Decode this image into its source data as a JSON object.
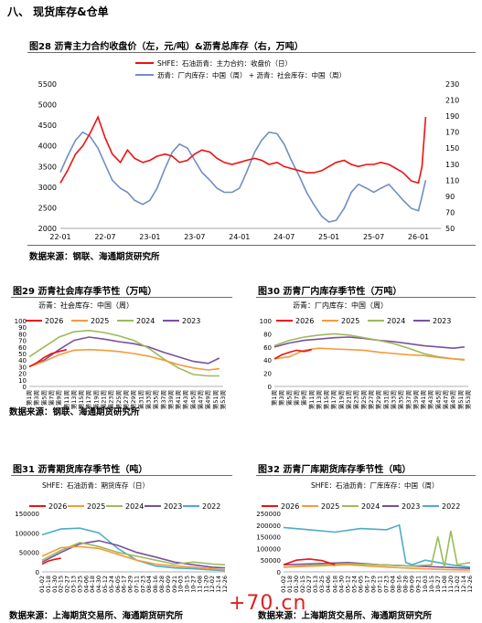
{
  "section_title": "八、  现货库存&仓单",
  "logo_text": "+70.cn",
  "figures": [
    {
      "id": "fig28",
      "title": "图28  沥青主力合约收盘价（左，元/吨）&沥青总库存（右，万吨）",
      "source": "数据来源：钢联、海通期货研究所",
      "legend": [
        "SHFE：石油沥青：主力合约：收盘价（日）",
        "沥青：厂内库存：中国（周）  + 沥青：社会库存：中国（周）"
      ]
    },
    {
      "id": "fig29",
      "title": "图29  沥青社会库存季节性（万吨）",
      "source": "数据来源：钢联、海通期货研究所",
      "subtitle": "沥青：社会库存：中国（周）"
    },
    {
      "id": "fig30",
      "title": "图30  沥青厂内库存季节性（万吨）",
      "subtitle": "沥青：厂内库存：中国（周）"
    },
    {
      "id": "fig31",
      "title": "图31  沥青期货库存季节性（吨）",
      "source": "数据来源：上海期货交易所、海通期货研究所",
      "subtitle": "SHFE：石油沥青：期货库存（日）"
    },
    {
      "id": "fig32",
      "title": "图32  沥青厂库期货库存季节性（吨）",
      "source": "数据来源：上海期货交易所、海通期货研究所",
      "subtitle": "SHFE：石油沥青：厂库库存：中国（周）"
    }
  ],
  "chart_data": [
    {
      "type": "line",
      "title": "沥青主力合约收盘价（左，元/吨）&沥青总库存（右，万吨）",
      "x_ticks": [
        "22-01",
        "22-07",
        "23-01",
        "23-07",
        "24-01",
        "24-07",
        "25-01",
        "25-07",
        "26-01"
      ],
      "ylim_left": [
        2000,
        5500
      ],
      "yticks_left": [
        2000,
        2500,
        3000,
        3500,
        4000,
        4500,
        5000,
        5500
      ],
      "ylim_right": [
        50,
        230
      ],
      "yticks_right": [
        50,
        70,
        90,
        110,
        130,
        150,
        170,
        190,
        210,
        230
      ],
      "colors": {
        "price": "#ee1111",
        "inventory": "#6f8fc4"
      },
      "series": [
        {
          "name": "SHFE：石油沥青：主力合约：收盘价（日）",
          "axis": "left",
          "x": [
            2022.0,
            2022.08,
            2022.17,
            2022.25,
            2022.33,
            2022.42,
            2022.5,
            2022.58,
            2022.67,
            2022.75,
            2022.83,
            2022.92,
            2023.0,
            2023.08,
            2023.17,
            2023.25,
            2023.33,
            2023.42,
            2023.5,
            2023.58,
            2023.67,
            2023.75,
            2023.83,
            2023.92,
            2024.0,
            2024.08,
            2024.17,
            2024.25,
            2024.33,
            2024.42,
            2024.5,
            2024.58,
            2024.67,
            2024.75,
            2024.83,
            2024.92,
            2025.0,
            2025.08,
            2025.17,
            2025.25,
            2025.33,
            2025.42,
            2025.5,
            2025.58,
            2025.67,
            2025.75,
            2025.83,
            2025.92,
            2026.0,
            2026.04,
            2026.08
          ],
          "y": [
            3100,
            3400,
            3800,
            4000,
            4300,
            4700,
            4200,
            3800,
            3600,
            3900,
            3700,
            3600,
            3650,
            3750,
            3800,
            3750,
            3600,
            3650,
            3800,
            3900,
            3850,
            3700,
            3600,
            3550,
            3600,
            3650,
            3700,
            3650,
            3550,
            3600,
            3500,
            3450,
            3400,
            3350,
            3350,
            3400,
            3500,
            3600,
            3650,
            3550,
            3500,
            3550,
            3550,
            3600,
            3550,
            3450,
            3350,
            3150,
            3100,
            3500,
            4700
          ]
        },
        {
          "name": "沥青：厂内库存：中国（周）  + 沥青：社会库存：中国（周）",
          "axis": "right",
          "x": [
            2022.0,
            2022.08,
            2022.17,
            2022.25,
            2022.33,
            2022.42,
            2022.5,
            2022.58,
            2022.67,
            2022.75,
            2022.83,
            2022.92,
            2023.0,
            2023.08,
            2023.17,
            2023.25,
            2023.33,
            2023.42,
            2023.5,
            2023.58,
            2023.67,
            2023.75,
            2023.83,
            2023.92,
            2024.0,
            2024.08,
            2024.17,
            2024.25,
            2024.33,
            2024.42,
            2024.5,
            2024.58,
            2024.67,
            2024.75,
            2024.83,
            2024.92,
            2025.0,
            2025.08,
            2025.17,
            2025.25,
            2025.33,
            2025.42,
            2025.5,
            2025.58,
            2025.67,
            2025.75,
            2025.83,
            2025.92,
            2026.0,
            2026.04,
            2026.08
          ],
          "y": [
            120,
            140,
            160,
            170,
            165,
            150,
            130,
            110,
            100,
            95,
            85,
            80,
            85,
            100,
            125,
            145,
            155,
            150,
            135,
            120,
            110,
            100,
            95,
            95,
            100,
            120,
            145,
            160,
            170,
            168,
            155,
            135,
            115,
            95,
            80,
            65,
            58,
            60,
            75,
            95,
            105,
            100,
            95,
            100,
            105,
            95,
            85,
            75,
            72,
            90,
            110
          ]
        }
      ]
    },
    {
      "type": "line",
      "title": "沥青：社会库存：中国（周）",
      "x_ticks": [
        "第1周",
        "第3周",
        "第5周",
        "第7周",
        "第9周",
        "第11周",
        "第13周",
        "第15周",
        "第17周",
        "第19周",
        "第21周",
        "第23周",
        "第25周",
        "第27周",
        "第29周",
        "第31周",
        "第33周",
        "第35周",
        "第37周",
        "第39周",
        "第41周",
        "第43周",
        "第45周",
        "第47周",
        "第49周",
        "第51周",
        "第53周"
      ],
      "ylim": [
        0,
        100
      ],
      "yticks": [
        0,
        10,
        20,
        30,
        40,
        50,
        60,
        70,
        80,
        90,
        100
      ],
      "series": [
        {
          "name": "2026",
          "color": "#ee1111",
          "x": [
            1,
            3,
            5,
            7,
            9,
            11
          ],
          "y": [
            30,
            36,
            44,
            50,
            53,
            56
          ]
        },
        {
          "name": "2025",
          "color": "#f59a3c",
          "x": [
            1,
            5,
            9,
            13,
            17,
            21,
            25,
            29,
            33,
            37,
            41,
            45,
            49,
            52
          ],
          "y": [
            30,
            38,
            48,
            55,
            56,
            55,
            53,
            50,
            46,
            40,
            33,
            28,
            25,
            27
          ]
        },
        {
          "name": "2024",
          "color": "#9bbb59",
          "x": [
            1,
            5,
            9,
            13,
            17,
            21,
            25,
            29,
            33,
            37,
            41,
            45,
            49,
            52
          ],
          "y": [
            45,
            60,
            75,
            83,
            85,
            82,
            77,
            70,
            58,
            42,
            28,
            18,
            16,
            16
          ]
        },
        {
          "name": "2023",
          "color": "#7b4fa0",
          "x": [
            1,
            5,
            9,
            13,
            17,
            21,
            25,
            29,
            33,
            37,
            41,
            45,
            49,
            52
          ],
          "y": [
            30,
            40,
            56,
            70,
            75,
            72,
            68,
            65,
            60,
            52,
            45,
            38,
            35,
            43
          ]
        }
      ]
    },
    {
      "type": "line",
      "title": "沥青：厂内库存：中国（周）",
      "x_ticks": [
        "第1周",
        "第3周",
        "第5周",
        "第7周",
        "第9周",
        "第11周",
        "第13周",
        "第15周",
        "第17周",
        "第19周",
        "第21周",
        "第23周",
        "第25周",
        "第27周",
        "第29周",
        "第31周",
        "第33周",
        "第35周",
        "第37周",
        "第39周",
        "第41周",
        "第43周",
        "第45周",
        "第47周",
        "第49周",
        "第51周",
        "第53周"
      ],
      "ylim": [
        0,
        100
      ],
      "yticks": [
        0,
        20,
        40,
        60,
        80,
        100
      ],
      "series": [
        {
          "name": "2026",
          "color": "#ee1111",
          "x": [
            1,
            3,
            5,
            7,
            9,
            11
          ],
          "y": [
            42,
            48,
            52,
            55,
            53,
            56
          ]
        },
        {
          "name": "2025",
          "color": "#f59a3c",
          "x": [
            1,
            5,
            9,
            13,
            17,
            21,
            25,
            29,
            33,
            37,
            41,
            45,
            49,
            52
          ],
          "y": [
            42,
            45,
            55,
            58,
            57,
            56,
            55,
            52,
            50,
            48,
            47,
            44,
            42,
            40
          ]
        },
        {
          "name": "2024",
          "color": "#9bbb59",
          "x": [
            1,
            5,
            9,
            13,
            17,
            21,
            25,
            29,
            33,
            37,
            41,
            45,
            49,
            52
          ],
          "y": [
            62,
            70,
            75,
            78,
            80,
            78,
            74,
            70,
            65,
            58,
            50,
            45,
            42,
            41
          ]
        },
        {
          "name": "2023",
          "color": "#7b4fa0",
          "x": [
            1,
            5,
            9,
            13,
            17,
            21,
            25,
            29,
            33,
            37,
            41,
            45,
            49,
            52
          ],
          "y": [
            60,
            66,
            70,
            72,
            74,
            75,
            73,
            70,
            68,
            65,
            62,
            60,
            58,
            60
          ]
        }
      ]
    },
    {
      "type": "line",
      "title": "SHFE：石油沥青：期货库存（日）",
      "x_ticks": [
        "01-02",
        "01-18",
        "01-30",
        "02-15",
        "02-27",
        "03-13",
        "03-25",
        "04-06",
        "04-18",
        "04-30",
        "05-12",
        "05-24",
        "06-05",
        "06-17",
        "06-29",
        "07-11",
        "07-23",
        "08-04",
        "08-16",
        "08-28",
        "09-09",
        "09-21",
        "10-03",
        "10-15",
        "10-27",
        "11-08",
        "11-20",
        "12-02",
        "12-14",
        "12-26"
      ],
      "ylim": [
        0,
        150000
      ],
      "yticks": [
        0,
        50000,
        100000,
        150000
      ],
      "series": [
        {
          "name": "2026",
          "color": "#ee1111",
          "x": [
            0,
            1,
            2,
            3
          ],
          "y": [
            20000,
            28000,
            32000,
            35000
          ]
        },
        {
          "name": "2025",
          "color": "#f59a3c",
          "x": [
            0,
            3,
            6,
            9,
            12,
            15,
            18,
            21,
            24,
            27,
            29
          ],
          "y": [
            40000,
            62000,
            65000,
            60000,
            45000,
            30000,
            20000,
            15000,
            12000,
            8000,
            5000
          ]
        },
        {
          "name": "2024",
          "color": "#9bbb59",
          "x": [
            0,
            3,
            6,
            9,
            12,
            15,
            18,
            21,
            24,
            27,
            29
          ],
          "y": [
            30000,
            55000,
            75000,
            65000,
            50000,
            40000,
            30000,
            20000,
            25000,
            20000,
            18000
          ]
        },
        {
          "name": "2023",
          "color": "#7b4fa0",
          "x": [
            0,
            3,
            6,
            9,
            12,
            15,
            18,
            21,
            24,
            27,
            29
          ],
          "y": [
            25000,
            50000,
            72000,
            80000,
            68000,
            50000,
            38000,
            25000,
            18000,
            12000,
            10000
          ]
        },
        {
          "name": "2022",
          "color": "#4bacc6",
          "x": [
            0,
            3,
            6,
            9,
            12,
            15,
            18,
            21,
            24,
            27,
            29
          ],
          "y": [
            95000,
            110000,
            112000,
            100000,
            60000,
            30000,
            15000,
            10000,
            8000,
            5000,
            3000
          ]
        }
      ]
    },
    {
      "type": "line",
      "title": "SHFE：石油沥青：厂库库存：中国（周）",
      "x_ticks": [
        "01-02",
        "01-18",
        "01-30",
        "02-15",
        "02-27",
        "03-13",
        "03-25",
        "04-06",
        "04-18",
        "04-30",
        "05-12",
        "05-24",
        "06-05",
        "06-17",
        "06-29",
        "07-11",
        "07-23",
        "08-04",
        "08-16",
        "08-28",
        "09-09",
        "09-21",
        "10-03",
        "10-15",
        "10-27",
        "11-08",
        "11-20",
        "12-02",
        "12-14",
        "12-26"
      ],
      "ylim": [
        0,
        250000
      ],
      "yticks": [
        0,
        50000,
        100000,
        150000,
        200000,
        250000
      ],
      "series": [
        {
          "name": "2026",
          "color": "#ee1111",
          "x": [
            0,
            2,
            4,
            6,
            8
          ],
          "y": [
            30000,
            50000,
            55000,
            48000,
            30000
          ]
        },
        {
          "name": "2025",
          "color": "#f59a3c",
          "x": [
            0,
            5,
            10,
            15,
            20,
            25,
            29
          ],
          "y": [
            20000,
            25000,
            30000,
            22000,
            15000,
            10000,
            8000
          ]
        },
        {
          "name": "2024",
          "color": "#9bbb59",
          "x": [
            0,
            5,
            10,
            15,
            20,
            23,
            24,
            25,
            26,
            27,
            29
          ],
          "y": [
            20000,
            30000,
            35000,
            30000,
            25000,
            30000,
            150000,
            20000,
            175000,
            30000,
            40000
          ]
        },
        {
          "name": "2023",
          "color": "#7b4fa0",
          "x": [
            0,
            5,
            10,
            15,
            20,
            25,
            29
          ],
          "y": [
            30000,
            35000,
            40000,
            30000,
            25000,
            20000,
            15000
          ]
        },
        {
          "name": "2022",
          "color": "#4bacc6",
          "x": [
            0,
            4,
            8,
            12,
            16,
            18,
            19,
            20,
            22,
            26,
            29
          ],
          "y": [
            190000,
            180000,
            170000,
            185000,
            180000,
            200000,
            40000,
            30000,
            50000,
            30000,
            20000
          ]
        }
      ]
    }
  ]
}
